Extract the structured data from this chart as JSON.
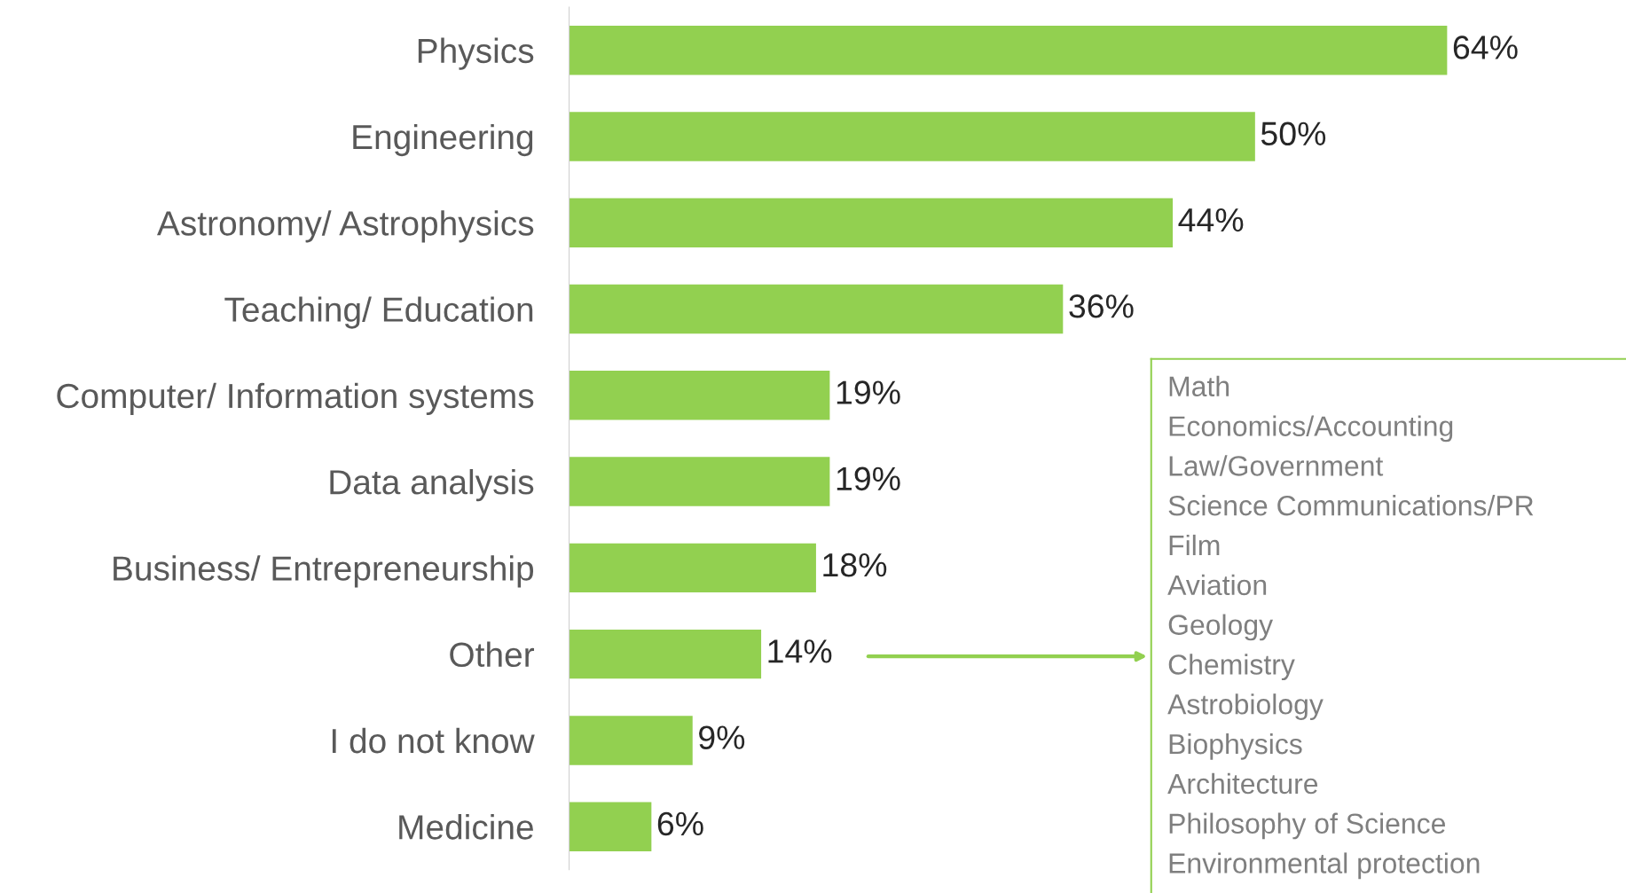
{
  "chart_data": {
    "type": "bar",
    "orientation": "horizontal",
    "categories": [
      "Physics",
      "Engineering",
      "Astronomy/ Astrophysics",
      "Teaching/ Education",
      "Computer/ Information systems",
      "Data analysis",
      "Business/ Entrepreneurship",
      "Other",
      "I do not know",
      "Medicine"
    ],
    "values": [
      64,
      50,
      44,
      36,
      19,
      19,
      18,
      14,
      9,
      6
    ],
    "value_labels": [
      "64%",
      "50%",
      "44%",
      "36%",
      "19%",
      "19%",
      "18%",
      "14%",
      "9%",
      "6%"
    ],
    "color": "#92d050",
    "tick_labels": "y",
    "grid": false,
    "annotations": [
      "Math",
      "Economics/Accounting",
      "Law/Government",
      "Science Communications/PR",
      "Film",
      "Aviation",
      "Geology",
      "Chemistry",
      "Astrobiology",
      "Biophysics",
      "Architecture",
      "Philosophy of Science",
      "Environmental protection"
    ]
  }
}
